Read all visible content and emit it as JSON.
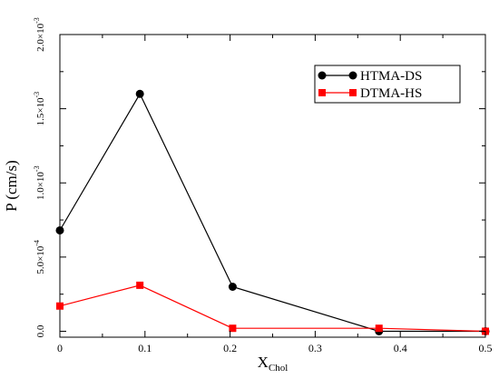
{
  "chart_data": {
    "type": "line",
    "xlabel": "X",
    "xlabel_sub": "Chol",
    "ylabel": "P (cm/s)",
    "xlim": [
      0,
      0.5
    ],
    "ylim": [
      -4e-05,
      0.002
    ],
    "x_ticks": [
      0,
      0.1,
      0.2,
      0.3,
      0.4,
      0.5
    ],
    "x_tick_labels": [
      "0",
      "0.1",
      "0.2",
      "0.3",
      "0.4",
      "0.5"
    ],
    "y_ticks": [
      0,
      0.0005,
      0.001,
      0.0015,
      0.002
    ],
    "y_tick_labels": [
      {
        "mant": "0.0",
        "exp": ""
      },
      {
        "mant": "5.0×10",
        "exp": "-4"
      },
      {
        "mant": "1.0×10",
        "exp": "-3"
      },
      {
        "mant": "1.5×10",
        "exp": "-3"
      },
      {
        "mant": "2.0×10",
        "exp": "-3"
      }
    ],
    "grid": false,
    "legend_position": "top-right",
    "series": [
      {
        "name": "HTMA-DS",
        "color": "#000000",
        "marker": "circle",
        "x": [
          0,
          0.094,
          0.203,
          0.375,
          0.5
        ],
        "y": [
          0.00068,
          0.0016,
          0.0003,
          0.0,
          0.0
        ]
      },
      {
        "name": "DTMA-HS",
        "color": "#ff0000",
        "marker": "square",
        "x": [
          0,
          0.094,
          0.203,
          0.375,
          0.5
        ],
        "y": [
          0.00017,
          0.00031,
          2e-05,
          2e-05,
          0.0
        ]
      }
    ]
  }
}
